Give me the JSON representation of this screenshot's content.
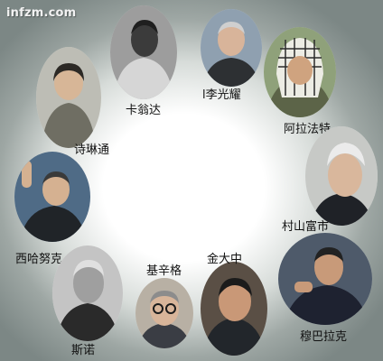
{
  "watermark": "infzm.com",
  "leaders": [
    {
      "name": "诗琳通",
      "photo": "portrait-photo"
    },
    {
      "name": "卡翁达",
      "photo": "portrait-photo"
    },
    {
      "name": "l李光耀",
      "photo": "portrait-photo"
    },
    {
      "name": "阿拉法特",
      "photo": "portrait-photo"
    },
    {
      "name": "西哈努克",
      "photo": "portrait-photo"
    },
    {
      "name": "村山富市",
      "photo": "portrait-photo"
    },
    {
      "name": "金大中",
      "photo": "portrait-photo"
    },
    {
      "name": "基辛格",
      "photo": "portrait-photo"
    },
    {
      "name": "斯诺",
      "photo": "portrait-photo"
    },
    {
      "name": "穆巴拉克",
      "photo": "portrait-photo"
    }
  ]
}
